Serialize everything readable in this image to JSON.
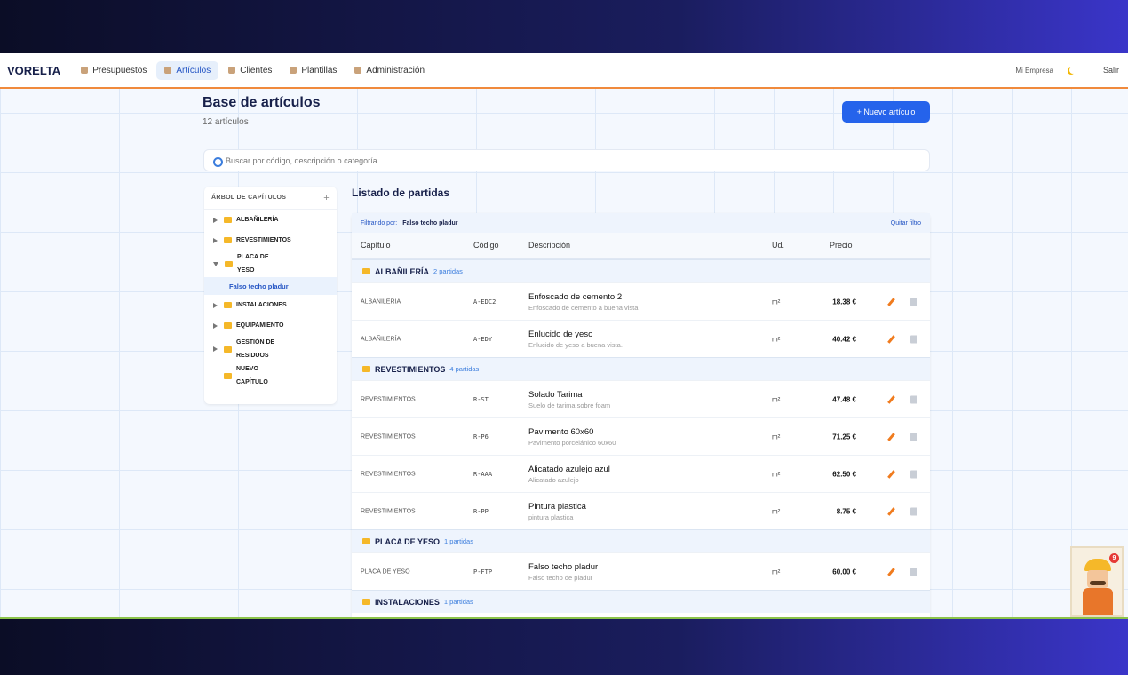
{
  "nav": {
    "brand": "VORELTA",
    "items": [
      "Presupuestos",
      "Artículos",
      "Clientes",
      "Plantillas",
      "Administración"
    ],
    "company": "Mi Empresa",
    "logout": "Salir"
  },
  "header": {
    "title": "Base de artículos",
    "count": "12 artículos",
    "new_button": "+ Nuevo artículo"
  },
  "search": {
    "placeholder": "Buscar por código, descripción o categoría..."
  },
  "tree": {
    "title": "ÁRBOL DE CAPÍTULOS",
    "add": "+",
    "nodes": [
      {
        "label": "ALBAÑILERÍA"
      },
      {
        "label": "REVESTIMIENTOS"
      },
      {
        "label": "PLACA DE YESO",
        "children": [
          "Falso techo pladur"
        ]
      },
      {
        "label": "INSTALACIONES"
      },
      {
        "label": "EQUIPAMIENTO"
      },
      {
        "label": "GESTIÓN DE RESIDUOS"
      },
      {
        "label": "NUEVO CAPÍTULO"
      }
    ]
  },
  "list": {
    "title": "Listado de partidas",
    "filter_label": "Filtrando por:",
    "filter_value": "Falso techo pladur",
    "clear": "Quitar filtro",
    "columns": [
      "Capítulo",
      "Código",
      "Descripción",
      "Ud.",
      "Precio"
    ],
    "groups": [
      {
        "name": "ALBAÑILERÍA",
        "count": "2 partidas",
        "rows": [
          {
            "chapter": "ALBAÑILERÍA",
            "code": "A-EDC2",
            "title": "Enfoscado de cemento 2",
            "desc": "Enfoscado de cemento a buena vista.",
            "unit": "m²",
            "price": "18.38 €"
          },
          {
            "chapter": "ALBAÑILERÍA",
            "code": "A-EDY",
            "title": "Enlucido de yeso",
            "desc": "Enlucido de yeso a buena vista.",
            "unit": "m²",
            "price": "40.42 €"
          }
        ]
      },
      {
        "name": "REVESTIMIENTOS",
        "count": "4 partidas",
        "rows": [
          {
            "chapter": "REVESTIMIENTOS",
            "code": "R-ST",
            "title": "Solado Tarima",
            "desc": "Suelo de tarima sobre foam",
            "unit": "m²",
            "price": "47.48 €"
          },
          {
            "chapter": "REVESTIMIENTOS",
            "code": "R-P6",
            "title": "Pavimento 60x60",
            "desc": "Pavimento porcelánico 60x60",
            "unit": "m²",
            "price": "71.25 €"
          },
          {
            "chapter": "REVESTIMIENTOS",
            "code": "R-AAA",
            "title": "Alicatado azulejo azul",
            "desc": "Alicatado azulejo",
            "unit": "m²",
            "price": "62.50 €"
          },
          {
            "chapter": "REVESTIMIENTOS",
            "code": "R-PP",
            "title": "Pintura plastica",
            "desc": "pintura plastica",
            "unit": "m²",
            "price": "8.75 €"
          }
        ]
      },
      {
        "name": "PLACA DE YESO",
        "count": "1 partidas",
        "rows": [
          {
            "chapter": "PLACA DE YESO",
            "code": "P-FTP",
            "title": "Falso techo pladur",
            "desc": "Falso techo de pladur",
            "unit": "m²",
            "price": "60.00 €"
          }
        ]
      },
      {
        "name": "INSTALACIONES",
        "count": "1 partidas",
        "rows": []
      }
    ]
  },
  "assistant": {
    "badge": "9"
  }
}
